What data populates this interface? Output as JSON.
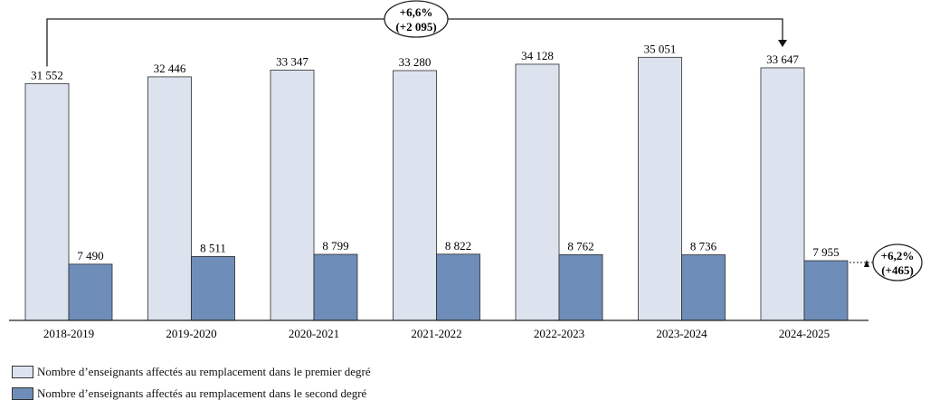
{
  "chart_data": {
    "type": "bar",
    "categories": [
      "2018-2019",
      "2019-2020",
      "2020-2021",
      "2021-2022",
      "2022-2023",
      "2023-2024",
      "2024-2025"
    ],
    "series": [
      {
        "name": "Nombre d’enseignants affectés au remplacement dans le premier degré",
        "values": [
          31552,
          32446,
          33347,
          33280,
          34128,
          35051,
          33647
        ],
        "labels": [
          "31 552",
          "32 446",
          "33 347",
          "33 280",
          "34 128",
          "35 051",
          "33 647"
        ],
        "color": "#dde3ee"
      },
      {
        "name": "Nombre d’enseignants affectés au remplacement dans le second degré",
        "values": [
          7490,
          8511,
          8799,
          8822,
          8762,
          8736,
          7955
        ],
        "labels": [
          "7 490",
          "8 511",
          "8 799",
          "8 822",
          "8 762",
          "8 736",
          "7 955"
        ],
        "color": "#6f8db9"
      }
    ],
    "ylim": [
      0,
      37500
    ],
    "grid": false,
    "legend_position": "bottom-left",
    "annotations": [
      {
        "series": 0,
        "from": "2018-2019",
        "to": "2024-2025",
        "line1": "+6,6%",
        "line2": "(+2 095)"
      },
      {
        "series": 1,
        "from": "2018-2019",
        "to": "2024-2025",
        "line1": "+6,2%",
        "line2": "(+465)"
      }
    ]
  }
}
